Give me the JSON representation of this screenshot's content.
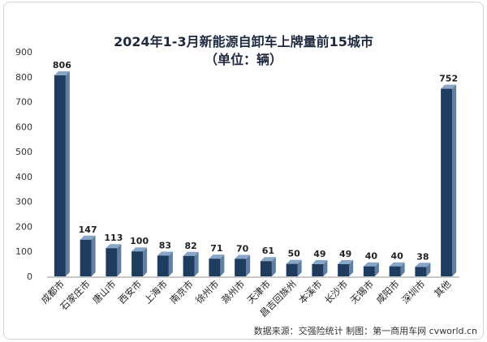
{
  "chart_data": {
    "type": "bar",
    "title": "2024年1-3月新能源自卸车上牌量前15城市",
    "subtitle": "（单位：辆）",
    "categories": [
      "成都市",
      "石家庄市",
      "唐山市",
      "西安市",
      "上海市",
      "南京市",
      "徐州市",
      "滁州市",
      "天津市",
      "昌吉回族州",
      "本溪市",
      "长沙市",
      "无锡市",
      "咸阳市",
      "深圳市",
      "其他"
    ],
    "values": [
      806,
      147,
      113,
      100,
      83,
      82,
      71,
      70,
      61,
      50,
      49,
      49,
      40,
      40,
      38,
      752
    ],
    "ylim": [
      0,
      900
    ],
    "yticks": [
      0,
      100,
      200,
      300,
      400,
      500,
      600,
      700,
      800,
      900
    ],
    "bar_color": "#1f3c5e",
    "bar_side_color": "#5f7fa3",
    "grid": false,
    "legend": "none"
  },
  "source": "数据来源：交强险统计 制图：第一商用车网 cvworld.cn"
}
